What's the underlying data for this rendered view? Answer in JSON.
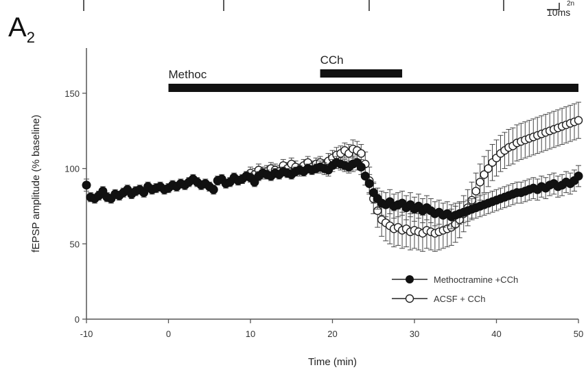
{
  "panel": {
    "label": "A",
    "subscript": "2"
  },
  "scale_bar": {
    "time_label": "10ms",
    "amp_label": "2n"
  },
  "chart_data": {
    "type": "line",
    "xlabel": "Time (min)",
    "ylabel": "fEPSP amplitude (% baseline)",
    "xlim": [
      -10,
      50
    ],
    "ylim": [
      0,
      150
    ],
    "xticks": [
      -10,
      0,
      10,
      20,
      30,
      40,
      50
    ],
    "yticks": [
      0,
      50,
      100,
      150
    ],
    "grid": false,
    "legend_position": "bottom-right",
    "bars": [
      {
        "label": "Methoc",
        "x_start": 0,
        "x_end": 50
      },
      {
        "label": "CCh",
        "x_start": 18.5,
        "x_end": 28.5
      }
    ],
    "series": [
      {
        "name": "Methoctramine +CCh",
        "marker": "filled-circle",
        "color": "#111111",
        "points": [
          [
            -10,
            89,
            4
          ],
          [
            -9.5,
            81,
            3
          ],
          [
            -9,
            80,
            3
          ],
          [
            -8.5,
            82,
            3
          ],
          [
            -8,
            85,
            3
          ],
          [
            -7.5,
            81,
            3
          ],
          [
            -7,
            80,
            3
          ],
          [
            -6.5,
            83,
            3
          ],
          [
            -6,
            82,
            3
          ],
          [
            -5.5,
            84,
            3
          ],
          [
            -5,
            86,
            3
          ],
          [
            -4.5,
            83,
            3
          ],
          [
            -4,
            85,
            3
          ],
          [
            -3.5,
            86,
            3
          ],
          [
            -3,
            84,
            3
          ],
          [
            -2.5,
            88,
            3
          ],
          [
            -2,
            86,
            3
          ],
          [
            -1.5,
            87,
            3
          ],
          [
            -1,
            88,
            3
          ],
          [
            -0.5,
            86,
            3
          ],
          [
            0,
            87,
            3
          ],
          [
            0.5,
            89,
            3
          ],
          [
            1,
            88,
            3
          ],
          [
            1.5,
            90,
            3
          ],
          [
            2,
            89,
            3
          ],
          [
            2.5,
            91,
            3
          ],
          [
            3,
            93,
            3
          ],
          [
            3.5,
            91,
            3
          ],
          [
            4,
            89,
            3
          ],
          [
            4.5,
            90,
            3
          ],
          [
            5,
            88,
            3
          ],
          [
            5.5,
            86,
            3
          ],
          [
            6,
            92,
            3
          ],
          [
            6.5,
            93,
            3
          ],
          [
            7,
            90,
            3
          ],
          [
            7.5,
            91,
            3
          ],
          [
            8,
            94,
            3
          ],
          [
            8.5,
            92,
            3
          ],
          [
            9,
            93,
            3
          ],
          [
            9.5,
            95,
            3
          ],
          [
            10,
            94,
            3
          ],
          [
            10.5,
            91,
            3
          ],
          [
            11,
            95,
            3
          ],
          [
            11.5,
            97,
            3
          ],
          [
            12,
            96,
            3
          ],
          [
            12.5,
            95,
            3
          ],
          [
            13,
            97,
            3
          ],
          [
            13.5,
            96,
            3
          ],
          [
            14,
            98,
            3
          ],
          [
            14.5,
            97,
            3
          ],
          [
            15,
            96,
            3
          ],
          [
            15.5,
            98,
            3
          ],
          [
            16,
            99,
            3
          ],
          [
            16.5,
            98,
            3
          ],
          [
            17,
            100,
            3
          ],
          [
            17.5,
            99,
            3
          ],
          [
            18,
            100,
            3
          ],
          [
            18.5,
            101,
            4
          ],
          [
            19,
            100,
            4
          ],
          [
            19.5,
            99,
            4
          ],
          [
            20,
            102,
            4
          ],
          [
            20.5,
            104,
            4
          ],
          [
            21,
            103,
            4
          ],
          [
            21.5,
            102,
            4
          ],
          [
            22,
            101,
            4
          ],
          [
            22.5,
            103,
            5
          ],
          [
            23,
            104,
            5
          ],
          [
            23.5,
            101,
            5
          ],
          [
            24,
            95,
            6
          ],
          [
            24.5,
            90,
            6
          ],
          [
            25,
            84,
            7
          ],
          [
            25.5,
            80,
            7
          ],
          [
            26,
            77,
            8
          ],
          [
            26.5,
            76,
            8
          ],
          [
            27,
            78,
            8
          ],
          [
            27.5,
            75,
            8
          ],
          [
            28,
            76,
            8
          ],
          [
            28.5,
            77,
            8
          ],
          [
            29,
            74,
            8
          ],
          [
            29.5,
            76,
            8
          ],
          [
            30,
            73,
            8
          ],
          [
            30.5,
            75,
            8
          ],
          [
            31,
            72,
            8
          ],
          [
            31.5,
            74,
            8
          ],
          [
            32,
            72,
            8
          ],
          [
            32.5,
            70,
            8
          ],
          [
            33,
            71,
            8
          ],
          [
            33.5,
            69,
            8
          ],
          [
            34,
            70,
            8
          ],
          [
            34.5,
            68,
            8
          ],
          [
            35,
            69,
            8
          ],
          [
            35.5,
            70,
            7
          ],
          [
            36,
            71,
            7
          ],
          [
            36.5,
            72,
            7
          ],
          [
            37,
            73,
            7
          ],
          [
            37.5,
            74,
            7
          ],
          [
            38,
            75,
            7
          ],
          [
            38.5,
            76,
            7
          ],
          [
            39,
            77,
            7
          ],
          [
            39.5,
            78,
            7
          ],
          [
            40,
            79,
            7
          ],
          [
            40.5,
            80,
            7
          ],
          [
            41,
            81,
            7
          ],
          [
            41.5,
            82,
            7
          ],
          [
            42,
            83,
            7
          ],
          [
            42.5,
            84,
            7
          ],
          [
            43,
            84,
            7
          ],
          [
            43.5,
            85,
            7
          ],
          [
            44,
            86,
            7
          ],
          [
            44.5,
            87,
            7
          ],
          [
            45,
            86,
            7
          ],
          [
            45.5,
            88,
            7
          ],
          [
            46,
            87,
            7
          ],
          [
            46.5,
            89,
            7
          ],
          [
            47,
            90,
            7
          ],
          [
            47.5,
            88,
            7
          ],
          [
            48,
            89,
            7
          ],
          [
            48.5,
            91,
            7
          ],
          [
            49,
            90,
            7
          ],
          [
            49.5,
            92,
            7
          ],
          [
            50,
            95,
            7
          ]
        ]
      },
      {
        "name": "ACSF + CCh",
        "marker": "open-circle",
        "color": "#111111",
        "points": [
          [
            10,
            97,
            4
          ],
          [
            10.5,
            96,
            4
          ],
          [
            11,
            99,
            4
          ],
          [
            11.5,
            97,
            4
          ],
          [
            12,
            98,
            4
          ],
          [
            12.5,
            100,
            4
          ],
          [
            13,
            99,
            4
          ],
          [
            13.5,
            98,
            4
          ],
          [
            14,
            102,
            4
          ],
          [
            14.5,
            100,
            4
          ],
          [
            15,
            103,
            4
          ],
          [
            15.5,
            101,
            4
          ],
          [
            16,
            99,
            4
          ],
          [
            16.5,
            102,
            4
          ],
          [
            17,
            104,
            4
          ],
          [
            17.5,
            101,
            4
          ],
          [
            18,
            103,
            4
          ],
          [
            18.5,
            104,
            4
          ],
          [
            19,
            102,
            4
          ],
          [
            19.5,
            105,
            5
          ],
          [
            20,
            107,
            5
          ],
          [
            20.5,
            109,
            5
          ],
          [
            21,
            110,
            5
          ],
          [
            21.5,
            112,
            5
          ],
          [
            22,
            110,
            6
          ],
          [
            22.5,
            113,
            6
          ],
          [
            23,
            112,
            6
          ],
          [
            23.5,
            110,
            6
          ],
          [
            24,
            103,
            8
          ],
          [
            24.5,
            92,
            9
          ],
          [
            25,
            80,
            10
          ],
          [
            25.5,
            72,
            11
          ],
          [
            26,
            66,
            11
          ],
          [
            26.5,
            64,
            12
          ],
          [
            27,
            62,
            12
          ],
          [
            27.5,
            60,
            12
          ],
          [
            28,
            61,
            12
          ],
          [
            28.5,
            59,
            12
          ],
          [
            29,
            60,
            12
          ],
          [
            29.5,
            58,
            12
          ],
          [
            30,
            59,
            12
          ],
          [
            30.5,
            58,
            12
          ],
          [
            31,
            57,
            12
          ],
          [
            31.5,
            59,
            12
          ],
          [
            32,
            58,
            12
          ],
          [
            32.5,
            57,
            12
          ],
          [
            33,
            58,
            12
          ],
          [
            33.5,
            59,
            12
          ],
          [
            34,
            60,
            12
          ],
          [
            34.5,
            61,
            12
          ],
          [
            35,
            63,
            12
          ],
          [
            35.5,
            66,
            12
          ],
          [
            36,
            70,
            12
          ],
          [
            36.5,
            74,
            12
          ],
          [
            37,
            79,
            12
          ],
          [
            37.5,
            85,
            12
          ],
          [
            38,
            91,
            12
          ],
          [
            38.5,
            96,
            12
          ],
          [
            39,
            100,
            12
          ],
          [
            39.5,
            104,
            12
          ],
          [
            40,
            107,
            12
          ],
          [
            40.5,
            110,
            12
          ],
          [
            41,
            112,
            12
          ],
          [
            41.5,
            114,
            12
          ],
          [
            42,
            115,
            12
          ],
          [
            42.5,
            117,
            12
          ],
          [
            43,
            118,
            12
          ],
          [
            43.5,
            119,
            12
          ],
          [
            44,
            120,
            12
          ],
          [
            44.5,
            121,
            12
          ],
          [
            45,
            122,
            12
          ],
          [
            45.5,
            123,
            12
          ],
          [
            46,
            124,
            12
          ],
          [
            46.5,
            125,
            12
          ],
          [
            47,
            126,
            12
          ],
          [
            47.5,
            127,
            12
          ],
          [
            48,
            128,
            12
          ],
          [
            48.5,
            129,
            12
          ],
          [
            49,
            130,
            12
          ],
          [
            49.5,
            131,
            12
          ],
          [
            50,
            132,
            12
          ]
        ]
      }
    ]
  }
}
